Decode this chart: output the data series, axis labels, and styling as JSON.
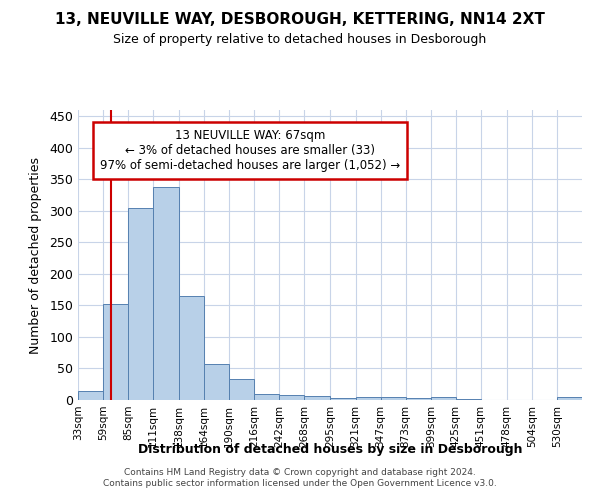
{
  "title": "13, NEUVILLE WAY, DESBOROUGH, KETTERING, NN14 2XT",
  "subtitle": "Size of property relative to detached houses in Desborough",
  "xlabel": "Distribution of detached houses by size in Desborough",
  "ylabel": "Number of detached properties",
  "footer_line1": "Contains HM Land Registry data © Crown copyright and database right 2024.",
  "footer_line2": "Contains public sector information licensed under the Open Government Licence v3.0.",
  "property_size": 67,
  "annotation_line1": "13 NEUVILLE WAY: 67sqm",
  "annotation_line2": "← 3% of detached houses are smaller (33)",
  "annotation_line3": "97% of semi-detached houses are larger (1,052) →",
  "bar_color": "#b8d0e8",
  "bar_edge_color": "#5580b0",
  "line_color": "#cc0000",
  "annotation_box_edge": "#cc0000",
  "grid_color": "#c8d4e8",
  "bins": [
    33,
    59,
    85,
    111,
    138,
    164,
    190,
    216,
    242,
    268,
    295,
    321,
    347,
    373,
    399,
    425,
    451,
    478,
    504,
    530,
    556
  ],
  "counts": [
    15,
    153,
    304,
    338,
    165,
    57,
    33,
    10,
    8,
    6,
    3,
    5,
    5,
    3,
    4,
    1,
    0,
    0,
    0,
    4
  ],
  "ylim": [
    0,
    460
  ],
  "yticks": [
    0,
    50,
    100,
    150,
    200,
    250,
    300,
    350,
    400,
    450
  ]
}
